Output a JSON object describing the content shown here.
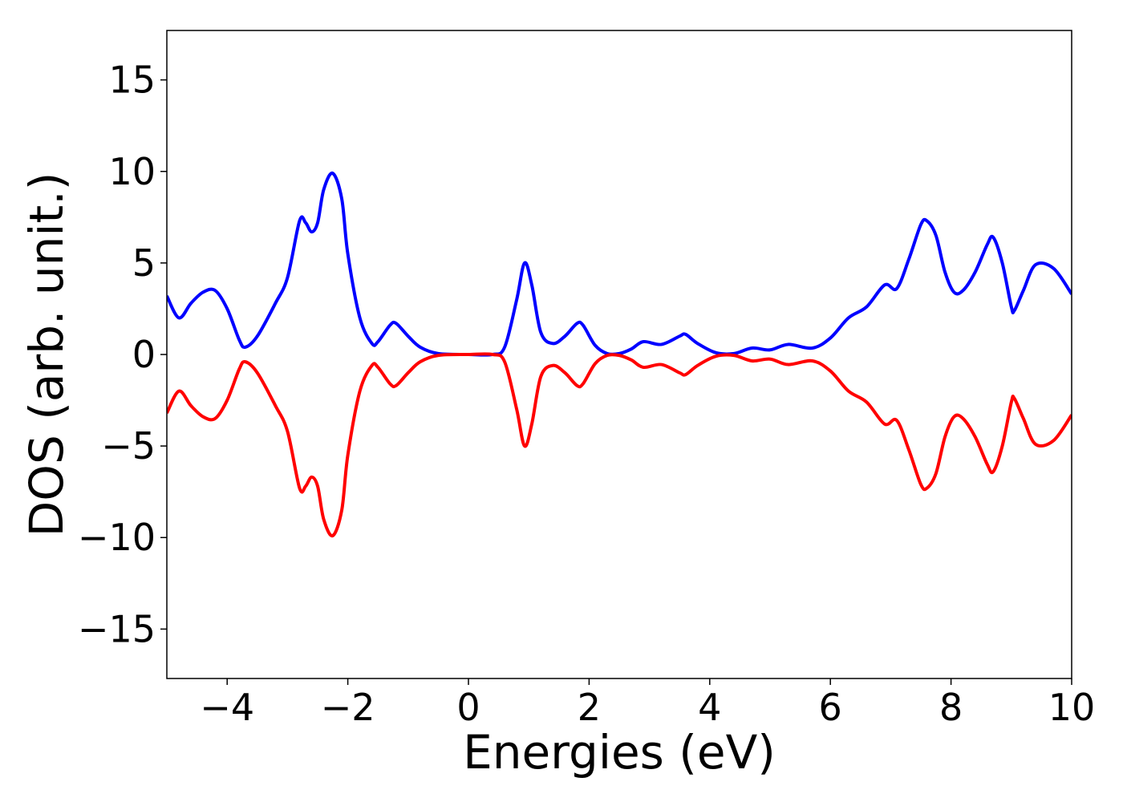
{
  "chart_data": {
    "type": "line",
    "xlabel": "Energies (eV)",
    "ylabel": "DOS (arb. unit.)",
    "x": [
      -5,
      -4.8,
      -4.6,
      -4.4,
      -4.2,
      -4.0,
      -3.8,
      -3.7,
      -3.5,
      -3.2,
      -3.0,
      -2.8,
      -2.7,
      -2.6,
      -2.5,
      -2.4,
      -2.25,
      -2.1,
      -2.0,
      -1.8,
      -1.6,
      -1.5,
      -1.3,
      -1.2,
      -1.0,
      -0.8,
      -0.5,
      0,
      0.4,
      0.6,
      0.8,
      0.93,
      1.05,
      1.2,
      1.4,
      1.6,
      1.8,
      1.9,
      2.1,
      2.3,
      2.5,
      2.7,
      2.9,
      3.2,
      3.5,
      3.6,
      3.8,
      4.1,
      4.4,
      4.7,
      5.0,
      5.3,
      5.7,
      6.0,
      6.3,
      6.6,
      6.9,
      7.1,
      7.3,
      7.5,
      7.6,
      7.75,
      7.9,
      8.05,
      8.2,
      8.4,
      8.6,
      8.7,
      8.85,
      9.0,
      9.05,
      9.2,
      9.4,
      9.7,
      10
    ],
    "series": [
      {
        "color": "#0000ff",
        "values": [
          3.2,
          2.0,
          2.8,
          3.4,
          3.5,
          2.5,
          0.8,
          0.4,
          1.0,
          2.8,
          4.2,
          7.3,
          7.2,
          6.7,
          7.2,
          9.0,
          9.9,
          8.5,
          5.5,
          2.0,
          0.6,
          0.7,
          1.6,
          1.7,
          1.0,
          0.4,
          0.05,
          0,
          0.0,
          0.4,
          3.0,
          5.0,
          3.8,
          1.2,
          0.6,
          1.0,
          1.7,
          1.6,
          0.5,
          0.05,
          0.05,
          0.3,
          0.7,
          0.55,
          1.0,
          1.1,
          0.6,
          0.1,
          0.05,
          0.35,
          0.25,
          0.55,
          0.35,
          0.9,
          2.0,
          2.6,
          3.8,
          3.6,
          5.2,
          7.1,
          7.3,
          6.5,
          4.5,
          3.4,
          3.5,
          4.5,
          6.0,
          6.4,
          5.0,
          2.6,
          2.4,
          3.5,
          4.9,
          4.7,
          3.3
        ]
      },
      {
        "color": "#ff0000",
        "values": [
          -3.2,
          -2.0,
          -2.8,
          -3.4,
          -3.5,
          -2.5,
          -0.8,
          -0.4,
          -1.0,
          -2.8,
          -4.2,
          -7.3,
          -7.2,
          -6.7,
          -7.2,
          -9.0,
          -9.9,
          -8.5,
          -5.5,
          -2.0,
          -0.6,
          -0.7,
          -1.6,
          -1.7,
          -1.0,
          -0.4,
          -0.05,
          0,
          0.0,
          -0.4,
          -3.0,
          -5.0,
          -3.8,
          -1.2,
          -0.6,
          -1.0,
          -1.7,
          -1.6,
          -0.5,
          -0.05,
          -0.05,
          -0.3,
          -0.7,
          -0.55,
          -1.0,
          -1.1,
          -0.6,
          -0.1,
          -0.05,
          -0.35,
          -0.25,
          -0.55,
          -0.35,
          -0.9,
          -2.0,
          -2.6,
          -3.8,
          -3.6,
          -5.2,
          -7.1,
          -7.3,
          -6.5,
          -4.5,
          -3.4,
          -3.5,
          -4.5,
          -6.0,
          -6.4,
          -5.0,
          -2.6,
          -2.4,
          -3.5,
          -4.9,
          -4.7,
          -3.3
        ]
      }
    ],
    "xlim": [
      -5,
      10
    ],
    "xticks": [
      {
        "value": -4,
        "label": "−4"
      },
      {
        "value": -2,
        "label": "−2"
      },
      0,
      2,
      4,
      6,
      8,
      10
    ],
    "ylim": [
      -17.7,
      17.7
    ],
    "yticks": [
      {
        "value": -15,
        "label": "−15"
      },
      {
        "value": -10,
        "label": "−10"
      },
      {
        "value": -5,
        "label": "−5"
      },
      0,
      5,
      10,
      15
    ]
  }
}
